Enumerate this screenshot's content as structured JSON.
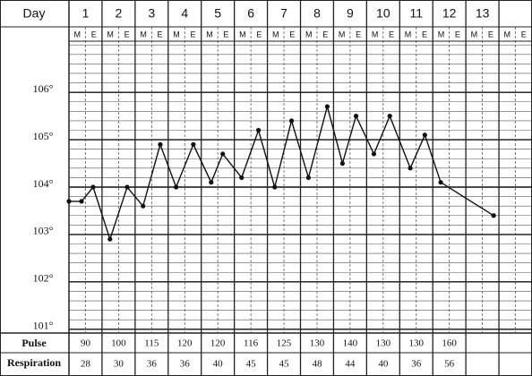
{
  "chart_data": {
    "type": "line",
    "header": {
      "day_label": "Day",
      "days": [
        1,
        2,
        3,
        4,
        5,
        6,
        7,
        8,
        9,
        10,
        11,
        12,
        13
      ],
      "halves": [
        "M",
        "E"
      ]
    },
    "x": [
      1.0,
      1.38,
      1.73,
      2.24,
      2.76,
      3.24,
      3.76,
      4.24,
      4.76,
      5.3,
      5.65,
      6.22,
      6.73,
      7.22,
      7.73,
      8.24,
      8.81,
      9.27,
      9.68,
      10.22,
      10.7,
      11.32,
      11.76,
      12.24,
      13.84
    ],
    "values": [
      103.7,
      103.7,
      104.0,
      102.9,
      104.0,
      103.6,
      104.9,
      104.0,
      104.9,
      104.1,
      104.7,
      104.2,
      105.2,
      104.0,
      105.4,
      104.2,
      105.7,
      104.5,
      105.5,
      104.7,
      105.5,
      104.4,
      105.1,
      104.1,
      103.4
    ],
    "color": "#111111",
    "xlim": [
      1,
      15
    ],
    "ylim": [
      100.92,
      107.08
    ],
    "yticks": [
      {
        "value": 101,
        "label": "101°"
      },
      {
        "value": 102,
        "label": "102°"
      },
      {
        "value": 103,
        "label": "103°"
      },
      {
        "value": 104,
        "label": "104°"
      },
      {
        "value": 105,
        "label": "105°"
      },
      {
        "value": 106,
        "label": "106°"
      }
    ],
    "grid": true,
    "rows": {
      "pulse_label": "Pulse",
      "pulse": [
        90,
        100,
        115,
        120,
        120,
        116,
        125,
        130,
        140,
        130,
        130,
        160
      ],
      "respiration_label": "Respiration",
      "respiration": [
        28,
        30,
        36,
        36,
        40,
        45,
        45,
        48,
        44,
        40,
        36,
        56
      ]
    }
  }
}
